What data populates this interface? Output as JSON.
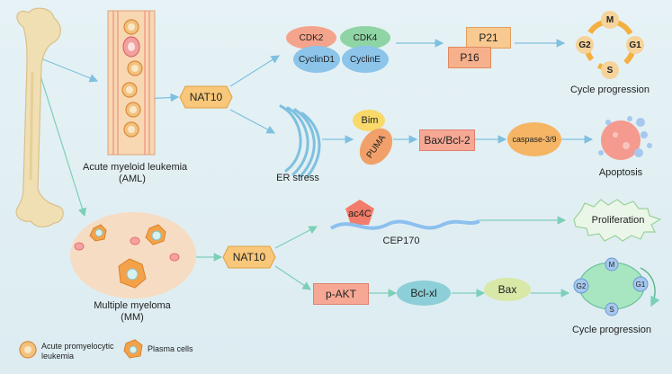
{
  "aml": {
    "label_line1": "Acute myeloid leukemia",
    "label_line2": "(AML)",
    "nat10": "NAT10",
    "cdk2": "CDK2",
    "cdk4": "CDK4",
    "cyclin_d1": "CyclinD1",
    "cyclin_e": "CyclinE",
    "p21": "P21",
    "p16": "P16",
    "cycle_progression": "Cycle progression",
    "er_stress": "ER stress",
    "bim": "Bim",
    "puma": "PUMA",
    "bax_bcl2": "Bax/Bcl-2",
    "caspase": "caspase-3/9",
    "apoptosis": "Apoptosis",
    "phases": {
      "m": "M",
      "g1": "G1",
      "s": "S",
      "g2": "G2"
    }
  },
  "mm": {
    "label_line1": "Multiple myeloma",
    "label_line2": "(MM)",
    "nat10": "NAT10",
    "ac4c": "ac4C",
    "cep170": "CEP170",
    "proliferation": "Proliferation",
    "p_akt": "p-AKT",
    "bcl_xl": "Bcl-xl",
    "bax": "Bax",
    "cycle_progression": "Cycle progression",
    "phases": {
      "m": "M",
      "g1": "G1",
      "s": "S",
      "g2": "G2"
    }
  },
  "legend": {
    "apl_line1": "Acute promyelocytic",
    "apl_line2": "leukemia",
    "plasma": "Plasma cells"
  },
  "colors": {
    "blue_arrow": "#7fc0df",
    "green_arrow": "#7ccfb8",
    "orange": "#f4b66a",
    "salmon": "#f2a48c",
    "bone": "#f1dfb4"
  }
}
